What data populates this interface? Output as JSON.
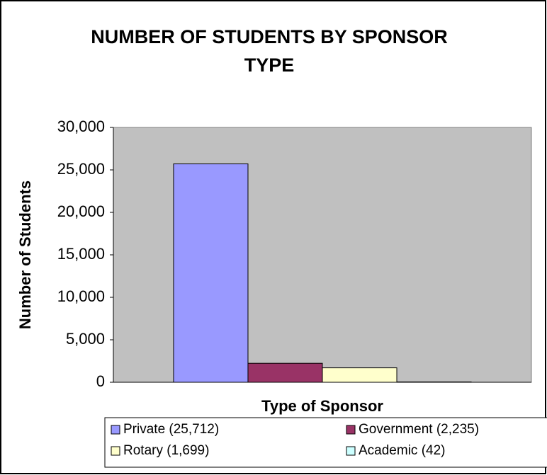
{
  "chart_data": {
    "type": "bar",
    "title": "NUMBER OF STUDENTS BY SPONSOR TYPE",
    "y_label": "Number of Students",
    "x_label": "Type of Sponsor",
    "series": [
      {
        "name": "Private (25,712)",
        "color": "#9999ff",
        "values": [
          25712
        ]
      },
      {
        "name": "Government (2,235)",
        "color": "#993366",
        "values": [
          2235
        ]
      },
      {
        "name": "Rotary (1,699)",
        "color": "#ffffcc",
        "values": [
          1699
        ]
      },
      {
        "name": "Academic (42)",
        "color": "#ccffff",
        "values": [
          42
        ]
      }
    ],
    "ylim": [
      0,
      30000
    ],
    "yticks": [
      0,
      {
        "value": 5000,
        "label": "5,000"
      },
      {
        "value": 10000,
        "label": "10,000"
      },
      {
        "value": 15000,
        "label": "15,000"
      },
      {
        "value": 20000,
        "label": "20,000"
      },
      {
        "value": 25000,
        "label": "25,000"
      },
      {
        "value": 30000,
        "label": "30,000"
      }
    ],
    "plot_background": "#c0c0c0",
    "legend": "bottom"
  }
}
